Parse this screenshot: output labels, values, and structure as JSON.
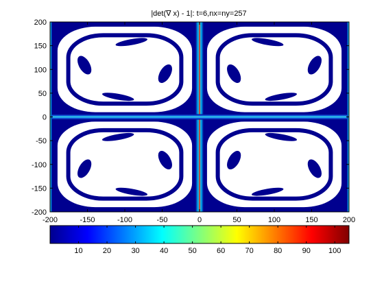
{
  "chart_data": {
    "type": "heatmap",
    "title": "|det(∇ x) - 1|: t=6,nx=ny=257",
    "xlabel": "",
    "ylabel": "",
    "xlim": [
      -200,
      200
    ],
    "ylim": [
      -200,
      200
    ],
    "x_ticks": [
      -200,
      -150,
      -100,
      -50,
      0,
      50,
      100,
      150,
      200
    ],
    "y_ticks": [
      -200,
      -150,
      -100,
      -50,
      0,
      50,
      100,
      150,
      200
    ],
    "grid": false,
    "colormap": "jet",
    "colorbar": {
      "location": "bottom",
      "range": [
        0,
        105
      ],
      "ticks": [
        10,
        20,
        30,
        40,
        50,
        60,
        70,
        80,
        90,
        100
      ]
    },
    "colors": {
      "low": "#00008f",
      "background": "#ffffff",
      "high": "#7f0000"
    },
    "features": {
      "vortex_cells": [
        {
          "cx": -100,
          "cy": 100
        },
        {
          "cx": 100,
          "cy": 100
        },
        {
          "cx": -100,
          "cy": -100
        },
        {
          "cx": 100,
          "cy": -100
        }
      ],
      "ridges": [
        {
          "orientation": "vertical",
          "at": 0,
          "peak_value": 100
        },
        {
          "orientation": "horizontal",
          "at": 0,
          "peak_value": 40
        },
        {
          "orientation": "vertical",
          "at": -200,
          "peak_value": 60
        },
        {
          "orientation": "vertical",
          "at": 200,
          "peak_value": 60
        }
      ]
    }
  }
}
